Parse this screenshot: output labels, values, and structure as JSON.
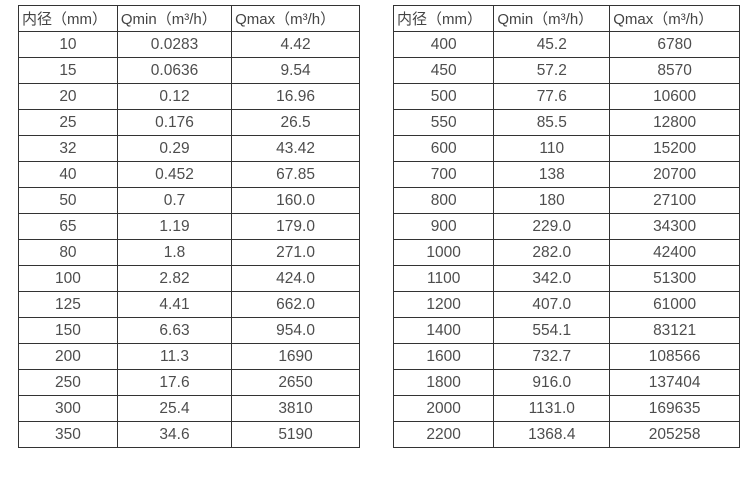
{
  "colors": {
    "border": "#333333",
    "header_text": "#444444",
    "cell_text": "#4d4d4d",
    "background": "#ffffff"
  },
  "tables": [
    {
      "name": "spec-table-left",
      "headers": [
        "内径（mm）",
        "Qmin（m³/h）",
        "Qmax（m³/h）"
      ],
      "rows": [
        [
          "10",
          "0.0283",
          "4.42"
        ],
        [
          "15",
          "0.0636",
          "9.54"
        ],
        [
          "20",
          "0.12",
          "16.96"
        ],
        [
          "25",
          "0.176",
          "26.5"
        ],
        [
          "32",
          "0.29",
          "43.42"
        ],
        [
          "40",
          "0.452",
          "67.85"
        ],
        [
          "50",
          "0.7",
          "160.0"
        ],
        [
          "65",
          "1.19",
          "179.0"
        ],
        [
          "80",
          "1.8",
          "271.0"
        ],
        [
          "100",
          "2.82",
          "424.0"
        ],
        [
          "125",
          "4.41",
          "662.0"
        ],
        [
          "150",
          "6.63",
          "954.0"
        ],
        [
          "200",
          "11.3",
          "1690"
        ],
        [
          "250",
          "17.6",
          "2650"
        ],
        [
          "300",
          "25.4",
          "3810"
        ],
        [
          "350",
          "34.6",
          "5190"
        ]
      ]
    },
    {
      "name": "spec-table-right",
      "headers": [
        "内径（mm）",
        "Qmin（m³/h）",
        "Qmax（m³/h）"
      ],
      "rows": [
        [
          "400",
          "45.2",
          "6780"
        ],
        [
          "450",
          "57.2",
          "8570"
        ],
        [
          "500",
          "77.6",
          "10600"
        ],
        [
          "550",
          "85.5",
          "12800"
        ],
        [
          "600",
          "110",
          "15200"
        ],
        [
          "700",
          "138",
          "20700"
        ],
        [
          "800",
          "180",
          "27100"
        ],
        [
          "900",
          "229.0",
          "34300"
        ],
        [
          "1000",
          "282.0",
          "42400"
        ],
        [
          "1100",
          "342.0",
          "51300"
        ],
        [
          "1200",
          "407.0",
          "61000"
        ],
        [
          "1400",
          "554.1",
          "83121"
        ],
        [
          "1600",
          "732.7",
          "108566"
        ],
        [
          "1800",
          "916.0",
          "137404"
        ],
        [
          "2000",
          "1131.0",
          "169635"
        ],
        [
          "2200",
          "1368.4",
          "205258"
        ]
      ]
    }
  ]
}
